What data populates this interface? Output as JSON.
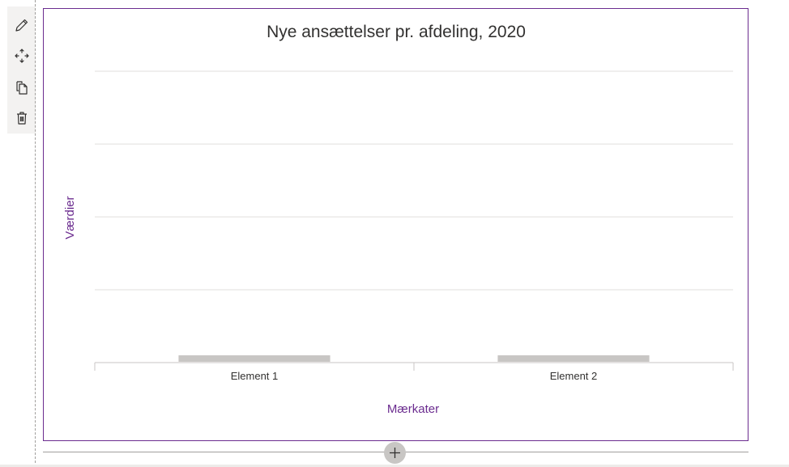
{
  "toolbar": {
    "items": [
      {
        "icon": "pencil-icon",
        "name": "edit-web-part"
      },
      {
        "icon": "move-icon",
        "name": "move-web-part"
      },
      {
        "icon": "copy-icon",
        "name": "duplicate-web-part"
      },
      {
        "icon": "trash-icon",
        "name": "delete-web-part"
      }
    ]
  },
  "colors": {
    "frame_border": "#6b2c8f",
    "axis_label": "#6b2c8f",
    "bar": "#c8c6c4",
    "grid": "#e1dfdd",
    "axis": "#c8c6c4"
  },
  "chart_data": {
    "type": "bar",
    "title": "Nye ansættelser pr. afdeling, 2020",
    "xlabel": "Mærkater",
    "ylabel": "Værdier",
    "categories": [
      "Element 1",
      "Element 2"
    ],
    "values": [
      0,
      0
    ],
    "grid": true,
    "legend": "none"
  },
  "add_section": {
    "icon": "plus-icon"
  }
}
